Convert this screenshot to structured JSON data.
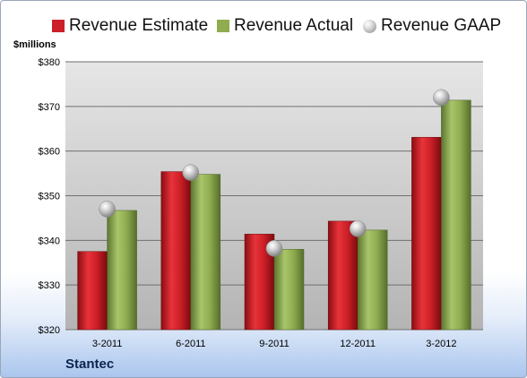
{
  "chart_data": {
    "type": "bar",
    "categories": [
      "3-2011",
      "6-2011",
      "9-2011",
      "12-2011",
      "3-2012"
    ],
    "series": [
      {
        "name": "Revenue Estimate",
        "type": "bar",
        "color": "#cc1f27",
        "values": [
          337.5,
          355.4,
          341.4,
          344.3,
          363.1
        ]
      },
      {
        "name": "Revenue Actual",
        "type": "bar",
        "color": "#8fac4f",
        "values": [
          346.7,
          354.8,
          338.0,
          342.3,
          371.4
        ]
      },
      {
        "name": "Revenue GAAP",
        "type": "scatter",
        "marker": "sphere",
        "color": "#b8b8b8",
        "values": [
          347.0,
          355.2,
          338.2,
          342.6,
          372.0
        ]
      }
    ],
    "ylabel": "$millions",
    "ylim": [
      320,
      380
    ],
    "yticks": [
      320,
      330,
      340,
      350,
      360,
      370,
      380
    ],
    "ytick_labels": [
      "$320",
      "$330",
      "$340",
      "$350",
      "$360",
      "$370",
      "$380"
    ],
    "grid": true,
    "legend_position": "top",
    "plot_background": "gradient grey",
    "footer": "Stantec"
  }
}
